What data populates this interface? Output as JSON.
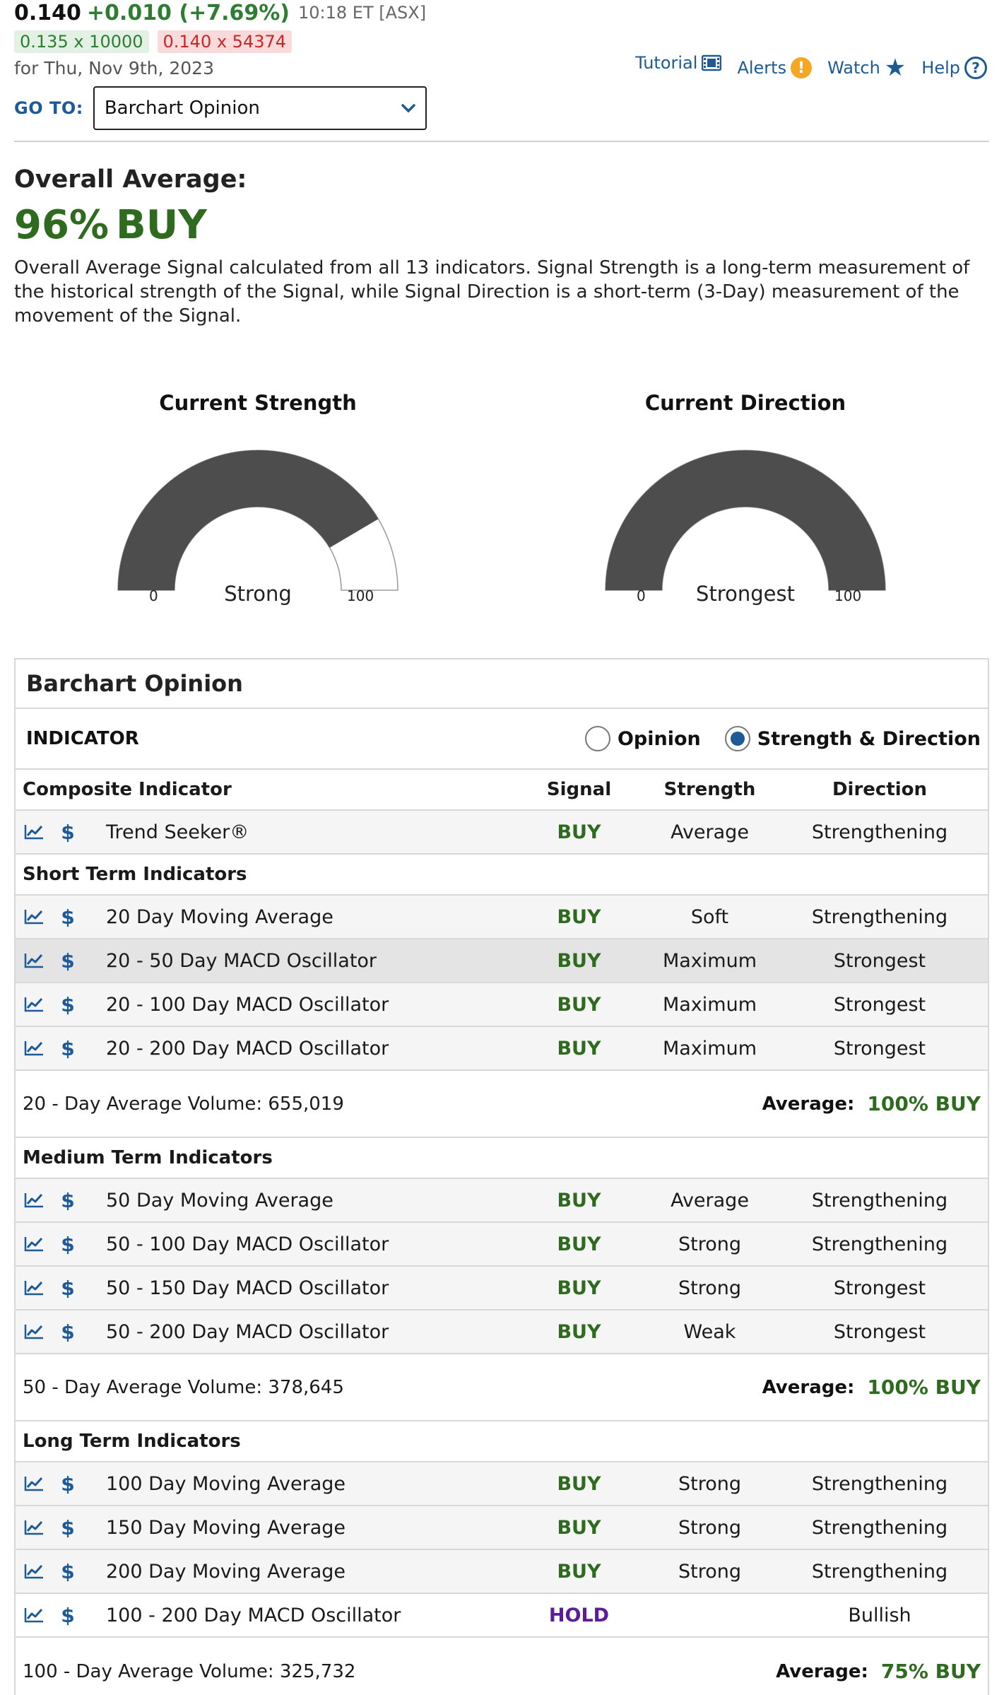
{
  "quote": {
    "last": "0.140",
    "change": "+0.010 (+7.69%)",
    "time": "10:18 ET [ASX]",
    "bid": "0.135 x 10000",
    "ask": "0.140 x 54374",
    "date": "for Thu, Nov 9th, 2023"
  },
  "links": {
    "tutorial": "Tutorial",
    "alerts": "Alerts",
    "watch": "Watch",
    "help": "Help"
  },
  "goto": {
    "label": "GO TO:",
    "selected": "Barchart Opinion"
  },
  "overall": {
    "title": "Overall Average:",
    "percent": "96%",
    "signal": "BUY",
    "description": "Overall Average Signal calculated from all 13 indicators. Signal Strength is a long-term measurement of the historical strength of the Signal, while Signal Direction is a short-term (3-Day) measurement of the movement of the Signal."
  },
  "gauges": {
    "strength": {
      "title": "Current Strength",
      "label": "Strong",
      "min": "0",
      "max": "100",
      "fill_fraction": 0.83
    },
    "direction": {
      "title": "Current Direction",
      "label": "Strongest",
      "min": "0",
      "max": "100",
      "fill_fraction": 1.0
    }
  },
  "table": {
    "title": "Barchart Opinion",
    "indicator_label": "INDICATOR",
    "radio_opinion": "Opinion",
    "radio_strength_direction": "Strength & Direction",
    "headers": {
      "name": "Composite Indicator",
      "signal": "Signal",
      "strength": "Strength",
      "direction": "Direction"
    },
    "composite": [
      {
        "name": "Trend Seeker®",
        "signal": "BUY",
        "strength": "Average",
        "direction": "Strengthening"
      }
    ],
    "short_title": "Short Term Indicators",
    "short": [
      {
        "name": "20 Day Moving Average",
        "signal": "BUY",
        "strength": "Soft",
        "direction": "Strengthening"
      },
      {
        "name": "20 - 50 Day MACD Oscillator",
        "signal": "BUY",
        "strength": "Maximum",
        "direction": "Strongest"
      },
      {
        "name": "20 - 100 Day MACD Oscillator",
        "signal": "BUY",
        "strength": "Maximum",
        "direction": "Strongest"
      },
      {
        "name": "20 - 200 Day MACD Oscillator",
        "signal": "BUY",
        "strength": "Maximum",
        "direction": "Strongest"
      }
    ],
    "short_volume": "20 - Day Average Volume: 655,019",
    "short_avg_label": "Average:",
    "short_avg_value": "100% BUY",
    "medium_title": "Medium Term Indicators",
    "medium": [
      {
        "name": "50 Day Moving Average",
        "signal": "BUY",
        "strength": "Average",
        "direction": "Strengthening"
      },
      {
        "name": "50 - 100 Day MACD Oscillator",
        "signal": "BUY",
        "strength": "Strong",
        "direction": "Strengthening"
      },
      {
        "name": "50 - 150 Day MACD Oscillator",
        "signal": "BUY",
        "strength": "Strong",
        "direction": "Strongest"
      },
      {
        "name": "50 - 200 Day MACD Oscillator",
        "signal": "BUY",
        "strength": "Weak",
        "direction": "Strongest"
      }
    ],
    "medium_volume": "50 - Day Average Volume: 378,645",
    "medium_avg_label": "Average:",
    "medium_avg_value": "100% BUY",
    "long_title": "Long Term Indicators",
    "long": [
      {
        "name": "100 Day Moving Average",
        "signal": "BUY",
        "strength": "Strong",
        "direction": "Strengthening"
      },
      {
        "name": "150 Day Moving Average",
        "signal": "BUY",
        "strength": "Strong",
        "direction": "Strengthening"
      },
      {
        "name": "200 Day Moving Average",
        "signal": "BUY",
        "strength": "Strong",
        "direction": "Strengthening"
      },
      {
        "name": "100 - 200 Day MACD Oscillator",
        "signal": "HOLD",
        "strength": "",
        "direction": "Bullish"
      }
    ],
    "long_volume": "100 - Day Average Volume: 325,732",
    "long_avg_label": "Average:",
    "long_avg_value": "75% BUY"
  },
  "colors": {
    "buy": "#2e6b1f",
    "hold": "#5b1b9a",
    "link": "#1d5a96",
    "gauge_fill": "#4d4d4d"
  }
}
